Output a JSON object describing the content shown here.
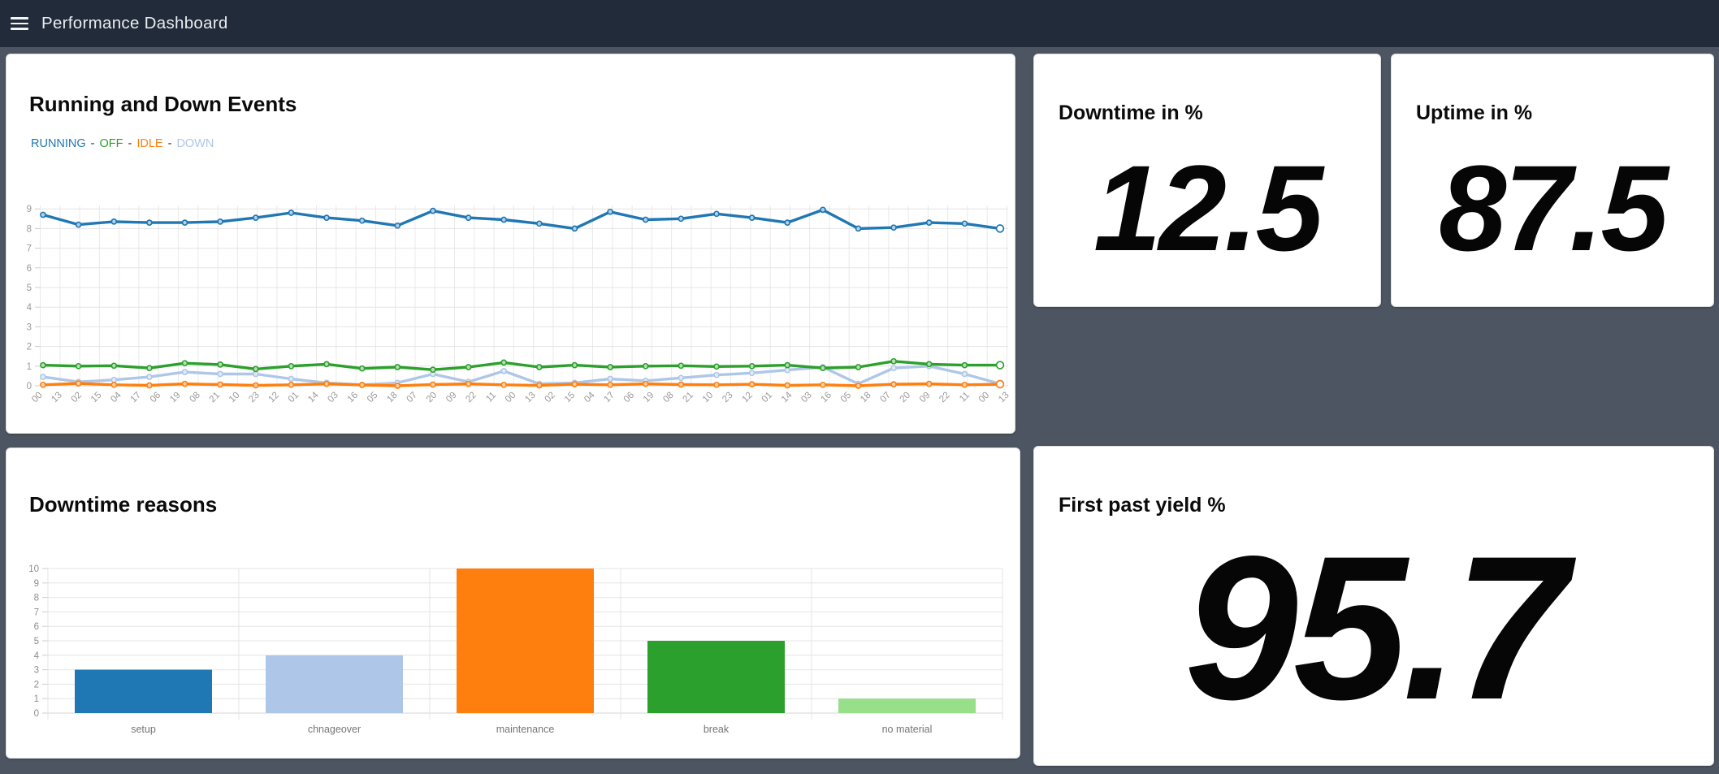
{
  "header": {
    "title": "Performance Dashboard",
    "menu_icon": "hamburger"
  },
  "cards": {
    "running_down": {
      "title": "Running and Down Events",
      "legend_separator": "-"
    },
    "downtime_pct": {
      "title": "Downtime in %",
      "value": "12.5"
    },
    "uptime_pct": {
      "title": "Uptime in %",
      "value": "87.5"
    },
    "downtime_reasons": {
      "title": "Downtime reasons"
    },
    "first_past_yield": {
      "title": "First past yield %",
      "value": "95.7"
    }
  },
  "colors": {
    "page_bg": "#4c5561",
    "header_bg": "#222b39",
    "grid": "#e4e4e4",
    "tick_text": "#999999"
  },
  "chart_data": [
    {
      "id": "running_down_events",
      "type": "line",
      "title": "Running and Down Events",
      "legend_position": "top-left",
      "grid": true,
      "ylim": [
        0,
        9.3
      ],
      "yticks": [
        0,
        1,
        2,
        3,
        4,
        5,
        6,
        7,
        8,
        9
      ],
      "x_tick_labels": [
        "00",
        "13",
        "02",
        "15",
        "04",
        "17",
        "06",
        "19",
        "08",
        "21",
        "10",
        "23",
        "12",
        "01",
        "14",
        "03",
        "16",
        "05",
        "18",
        "07",
        "20",
        "09",
        "22",
        "11",
        "00",
        "13",
        "02",
        "15",
        "04",
        "17",
        "06",
        "19",
        "08",
        "21",
        "10",
        "23",
        "12",
        "01",
        "14",
        "03",
        "16",
        "05",
        "18",
        "07",
        "20",
        "09",
        "22",
        "11",
        "00",
        "13"
      ],
      "series": [
        {
          "name": "RUNNING",
          "color": "#1f77b4",
          "values": [
            8.7,
            8.2,
            8.35,
            8.3,
            8.3,
            8.35,
            8.55,
            8.8,
            8.55,
            8.4,
            8.15,
            8.9,
            8.55,
            8.45,
            8.25,
            8.0,
            8.85,
            8.45,
            8.5,
            8.75,
            8.55,
            8.3,
            8.95,
            8.0,
            8.05,
            8.3,
            8.25,
            8.0
          ]
        },
        {
          "name": "OFF",
          "color": "#2ca02c",
          "values": [
            1.05,
            1.0,
            1.02,
            0.9,
            1.15,
            1.08,
            0.85,
            1.0,
            1.1,
            0.88,
            0.95,
            0.82,
            0.95,
            1.18,
            0.95,
            1.05,
            0.95,
            1.0,
            1.02,
            0.98,
            1.0,
            1.05,
            0.9,
            0.95,
            1.25,
            1.1,
            1.05,
            1.05
          ]
        },
        {
          "name": "IDLE",
          "color": "#ff7f0e",
          "values": [
            0.05,
            0.12,
            0.05,
            0.02,
            0.1,
            0.06,
            0.02,
            0.05,
            0.1,
            0.04,
            0.0,
            0.06,
            0.1,
            0.05,
            0.02,
            0.08,
            0.05,
            0.1,
            0.06,
            0.05,
            0.08,
            0.02,
            0.05,
            0.0,
            0.08,
            0.1,
            0.05,
            0.08
          ]
        },
        {
          "name": "DOWN",
          "color": "#aec7e8",
          "values": [
            0.45,
            0.2,
            0.3,
            0.45,
            0.7,
            0.6,
            0.6,
            0.35,
            0.15,
            0.05,
            0.15,
            0.6,
            0.2,
            0.75,
            0.1,
            0.15,
            0.35,
            0.25,
            0.4,
            0.55,
            0.65,
            0.8,
            0.95,
            0.1,
            0.9,
            1.0,
            0.6,
            0.1
          ]
        }
      ]
    },
    {
      "id": "downtime_reasons",
      "type": "bar",
      "title": "Downtime reasons",
      "grid": true,
      "ylim": [
        0,
        10
      ],
      "yticks": [
        0,
        1,
        2,
        3,
        4,
        5,
        6,
        7,
        8,
        9,
        10
      ],
      "categories": [
        "setup",
        "chnageover",
        "maintenance",
        "break",
        "no material"
      ],
      "values": [
        3,
        4,
        10,
        5,
        1
      ],
      "colors": [
        "#1f77b4",
        "#aec7e8",
        "#ff7f0e",
        "#2ca02c",
        "#98df8a"
      ]
    }
  ]
}
